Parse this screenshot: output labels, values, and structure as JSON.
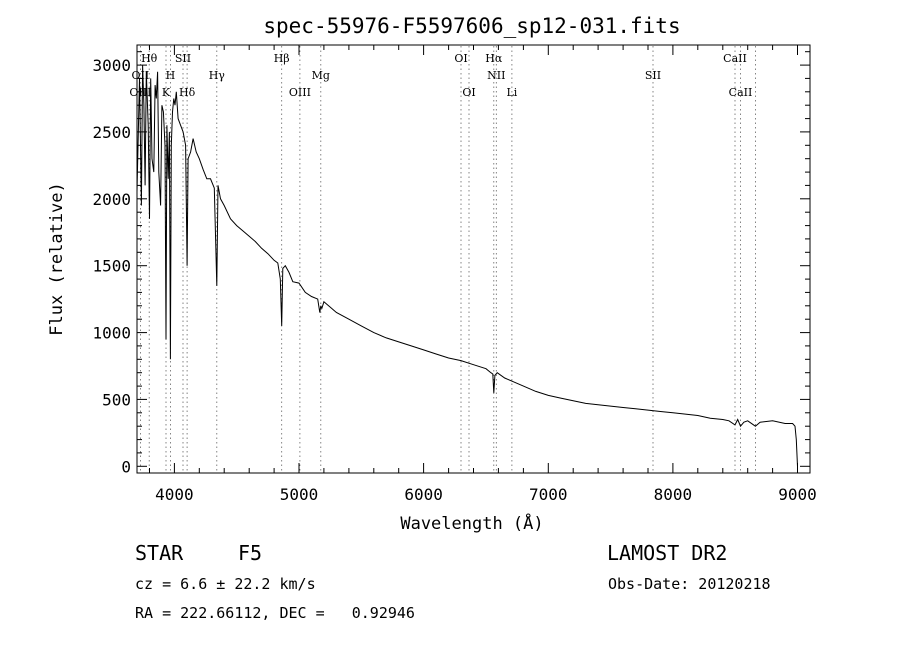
{
  "chart_data": {
    "type": "line",
    "title": "spec-55976-F5597606_sp12-031.fits",
    "xlabel": "Wavelength (Å)",
    "ylabel": "Flux (relative)",
    "xlim": [
      3700,
      9100
    ],
    "ylim": [
      -50,
      3150
    ],
    "x_ticks": [
      4000,
      5000,
      6000,
      7000,
      8000,
      9000
    ],
    "y_ticks": [
      0,
      500,
      1000,
      1500,
      2000,
      2500,
      3000
    ],
    "grid": false,
    "series": [
      {
        "x": [
          3700,
          3720,
          3735,
          3745,
          3755,
          3765,
          3775,
          3790,
          3800,
          3810,
          3820,
          3835,
          3845,
          3855,
          3865,
          3875,
          3889,
          3900,
          3912,
          3925,
          3933,
          3940,
          3950,
          3960,
          3968,
          3975,
          3985,
          3995,
          4005,
          4015,
          4030,
          4050,
          4070,
          4090,
          4102,
          4110,
          4130,
          4150,
          4175,
          4200,
          4230,
          4260,
          4290,
          4320,
          4340,
          4350,
          4370,
          4400,
          4450,
          4500,
          4550,
          4600,
          4650,
          4700,
          4750,
          4800,
          4830,
          4850,
          4861,
          4870,
          4890,
          4920,
          4950,
          5000,
          5050,
          5100,
          5150,
          5167,
          5175,
          5183,
          5200,
          5250,
          5300,
          5400,
          5500,
          5600,
          5700,
          5800,
          5900,
          6000,
          6100,
          6200,
          6300,
          6400,
          6500,
          6540,
          6555,
          6563,
          6572,
          6590,
          6650,
          6700,
          6800,
          6900,
          7000,
          7100,
          7200,
          7300,
          7400,
          7500,
          7600,
          7700,
          7800,
          7900,
          8000,
          8100,
          8200,
          8300,
          8400,
          8450,
          8498,
          8520,
          8542,
          8570,
          8600,
          8662,
          8700,
          8800,
          8900,
          8960,
          8980,
          8990,
          9000
        ],
        "y": [
          2050,
          2900,
          1950,
          3000,
          2700,
          2100,
          2950,
          2550,
          1850,
          2900,
          2300,
          2200,
          2850,
          2750,
          2950,
          2200,
          1950,
          2700,
          2650,
          2400,
          950,
          2550,
          2150,
          2500,
          800,
          2400,
          2650,
          2750,
          2700,
          2800,
          2600,
          2550,
          2500,
          2400,
          1500,
          2300,
          2350,
          2450,
          2350,
          2300,
          2220,
          2150,
          2150,
          2080,
          1350,
          2100,
          2000,
          1950,
          1850,
          1800,
          1760,
          1720,
          1680,
          1630,
          1590,
          1540,
          1520,
          1400,
          1050,
          1480,
          1500,
          1450,
          1380,
          1370,
          1300,
          1270,
          1250,
          1150,
          1200,
          1180,
          1230,
          1190,
          1150,
          1100,
          1050,
          1000,
          960,
          930,
          900,
          870,
          840,
          810,
          790,
          760,
          730,
          700,
          690,
          550,
          680,
          700,
          660,
          640,
          600,
          560,
          530,
          510,
          490,
          470,
          460,
          450,
          440,
          430,
          420,
          410,
          400,
          390,
          380,
          360,
          350,
          340,
          310,
          350,
          300,
          330,
          340,
          300,
          330,
          340,
          320,
          320,
          300,
          200,
          0
        ]
      }
    ],
    "line_marks": {
      "row1": [
        {
          "label": "Hθ",
          "x": 3798
        },
        {
          "label": "SII",
          "x": 4069
        },
        {
          "label": "Hβ",
          "x": 4861
        },
        {
          "label": "OI",
          "x": 6300
        },
        {
          "label": "Hα",
          "x": 6563
        },
        {
          "label": "CaII",
          "x": 8498
        }
      ],
      "row2": [
        {
          "label": "OII",
          "x": 3727
        },
        {
          "label": "H",
          "x": 3968
        },
        {
          "label": "Hγ",
          "x": 4340
        },
        {
          "label": "Mg",
          "x": 5175
        },
        {
          "label": "NII",
          "x": 6583
        },
        {
          "label": "SII",
          "x": 7840
        }
      ],
      "row3": [
        {
          "label": "OIII",
          "x": 3727
        },
        {
          "label": "K",
          "x": 3933
        },
        {
          "label": "Hδ",
          "x": 4102
        },
        {
          "label": "OIII",
          "x": 5007
        },
        {
          "label": "OI",
          "x": 6364
        },
        {
          "label": "Li",
          "x": 6708
        },
        {
          "label": "CaII",
          "x": 8542
        }
      ],
      "dotted_lines_x": [
        3727,
        3798,
        3933,
        3968,
        4069,
        4102,
        4340,
        4861,
        5007,
        5175,
        6300,
        6364,
        6563,
        6583,
        6708,
        7840,
        8498,
        8542,
        8662
      ]
    }
  },
  "info": {
    "object_class": "STAR",
    "subclass": "F5",
    "survey": "LAMOST DR2",
    "cz": "cz = 6.6 ± 22.2 km/s",
    "obs_date": "Obs-Date: 20120218",
    "coords": "RA = 222.66112, DEC =   0.92946"
  }
}
